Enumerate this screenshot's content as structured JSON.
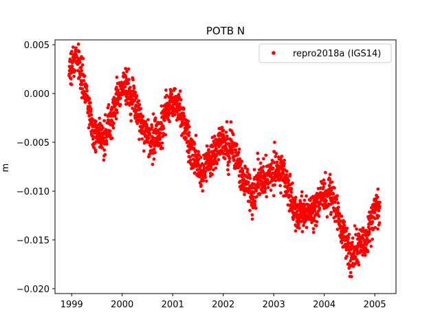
{
  "chart_data": {
    "type": "scatter",
    "title": "POTB N",
    "xlabel": "",
    "ylabel": "m",
    "xlim": [
      1998.67,
      2005.42
    ],
    "ylim": [
      -0.0205,
      0.0055
    ],
    "x_ticks": [
      1999,
      2000,
      2001,
      2002,
      2003,
      2004,
      2005
    ],
    "x_tick_labels": [
      "1999",
      "2000",
      "2001",
      "2002",
      "2003",
      "2004",
      "2005"
    ],
    "y_ticks": [
      0.005,
      0.0,
      -0.005,
      -0.01,
      -0.015,
      -0.02
    ],
    "y_tick_labels": [
      "0.005",
      "0.000",
      "−0.005",
      "−0.010",
      "−0.015",
      "−0.020"
    ],
    "grid": false,
    "legend_position": "top-right",
    "series": [
      {
        "name": "repro2018a (IGS14)",
        "color": "#ff0000",
        "marker": "circle",
        "x_range": [
          1998.95,
          2005.1
        ],
        "trend": {
          "intercept_at_1999": 0.0009,
          "rate_per_year": -0.00265
        },
        "seasonal": {
          "amplitude": 0.0023,
          "peak_fraction_of_year": 0.06
        },
        "scatter_std": 0.0009,
        "n_points": 2000
      }
    ]
  }
}
